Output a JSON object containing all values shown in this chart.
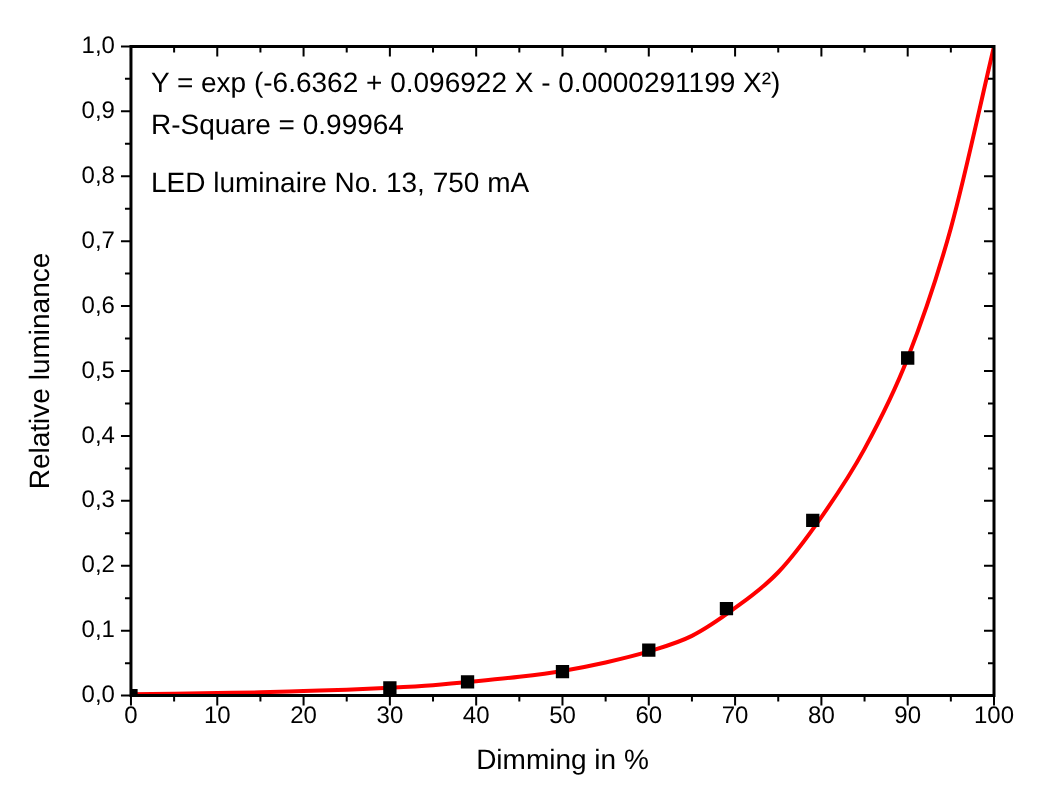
{
  "chart_data": {
    "type": "scatter",
    "xlabel": "Dimming in %",
    "ylabel": "Relative luminance",
    "xlim": [
      0,
      100
    ],
    "xticks": [
      0,
      10,
      20,
      30,
      40,
      50,
      60,
      70,
      80,
      90,
      100
    ],
    "ylim": [
      0,
      1
    ],
    "yticks": [
      {
        "value": 0,
        "label": "0,0"
      },
      {
        "value": 0.1,
        "label": "0,1"
      },
      {
        "value": 0.2,
        "label": "0,2"
      },
      {
        "value": 0.3,
        "label": "0,3"
      },
      {
        "value": 0.4,
        "label": "0,4"
      },
      {
        "value": 0.5,
        "label": "0,5"
      },
      {
        "value": 0.6,
        "label": "0,6"
      },
      {
        "value": 0.7,
        "label": "0,7"
      },
      {
        "value": 0.8,
        "label": "0,8"
      },
      {
        "value": 0.9,
        "label": "0,9"
      },
      {
        "value": 1,
        "label": "1,0"
      }
    ],
    "grid": false,
    "legend": false,
    "annotations": [
      "Y = exp (-6.6362 + 0.096922 X - 0.0000291199 X²)",
      "R-Square = 0.99964",
      "LED luminaire No. 13, 750 mA"
    ],
    "series": [
      {
        "type": "line",
        "color": "#ff0000",
        "marker": "none",
        "line_style": "solid",
        "x": [
          0,
          5,
          10,
          15,
          20,
          25,
          30,
          35,
          40,
          45,
          50,
          55,
          60,
          65,
          70,
          75,
          80,
          85,
          90,
          95,
          100
        ],
        "values": [
          0.002,
          0.003,
          0.004,
          0.005,
          0.007,
          0.009,
          0.012,
          0.016,
          0.022,
          0.029,
          0.038,
          0.051,
          0.068,
          0.092,
          0.135,
          0.19,
          0.275,
          0.38,
          0.52,
          0.72,
          1.0
        ]
      },
      {
        "type": "scatter",
        "color": "#000000",
        "marker": "square",
        "x": [
          0,
          30,
          39,
          50,
          60,
          69,
          79,
          90
        ],
        "values": [
          0.0,
          0.012,
          0.021,
          0.037,
          0.07,
          0.134,
          0.27,
          0.52
        ]
      }
    ]
  }
}
